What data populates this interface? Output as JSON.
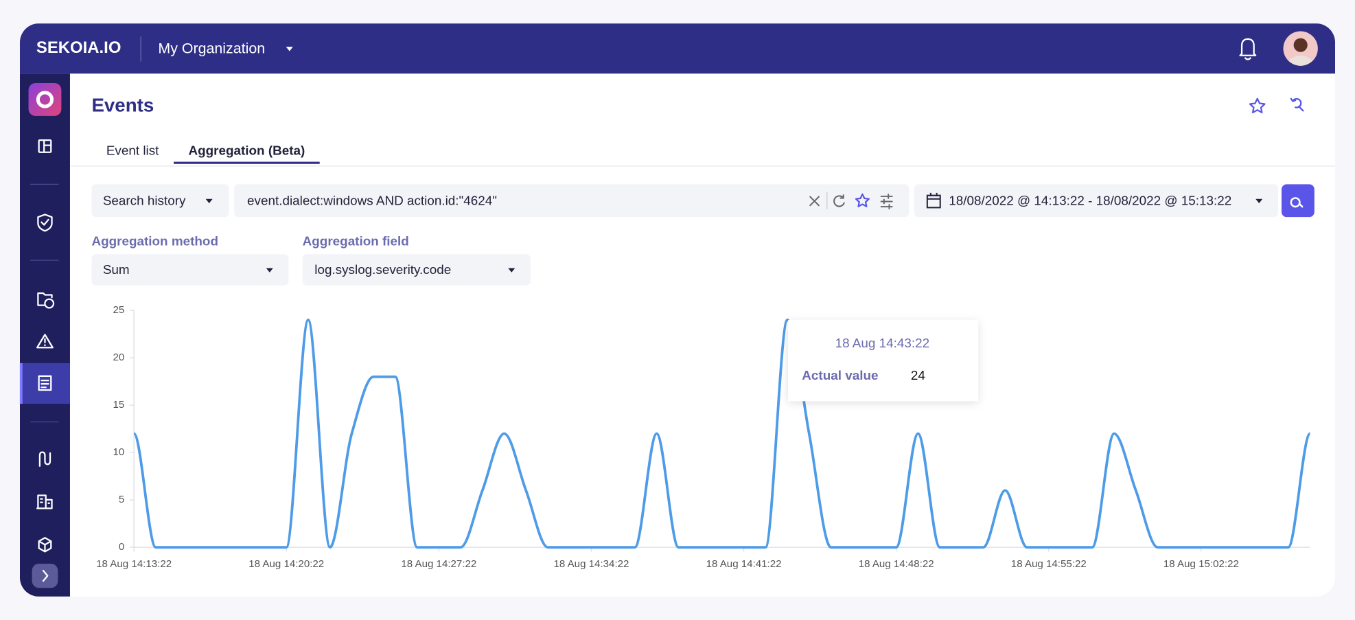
{
  "header": {
    "brand": "SEKOIA.IO",
    "organization": "My Organization"
  },
  "page": {
    "title": "Events",
    "tabs": [
      "Event list",
      "Aggregation (Beta)"
    ],
    "active_tab": 1
  },
  "search": {
    "history": "Search history",
    "query": "event.dialect:windows AND action.id:\"4624\"",
    "date_range": "18/08/2022 @ 14:13:22 - 18/08/2022 @ 15:13:22"
  },
  "aggregation": {
    "method_label": "Aggregation method",
    "method": "Sum",
    "field_label": "Aggregation field",
    "field": "log.syslog.severity.code"
  },
  "chart_data": {
    "type": "line",
    "color": "#4e9be8",
    "categories": [
      "18 Aug 14:13:22",
      null,
      null,
      null,
      null,
      null,
      null,
      "18 Aug 14:20:22",
      null,
      null,
      null,
      null,
      null,
      null,
      "18 Aug 14:27:22",
      null,
      null,
      null,
      null,
      null,
      null,
      "18 Aug 14:34:22",
      null,
      null,
      null,
      null,
      null,
      null,
      "18 Aug 14:41:22",
      null,
      null,
      null,
      null,
      null,
      null,
      "18 Aug 14:48:22",
      null,
      null,
      null,
      null,
      null,
      null,
      "18 Aug 14:55:22",
      null,
      null,
      null,
      null,
      null,
      null,
      "18 Aug 15:02:22",
      null,
      null,
      null,
      null,
      null
    ],
    "values": [
      12,
      0,
      0,
      0,
      0,
      0,
      0,
      0,
      24,
      0,
      12,
      18,
      18,
      0,
      0,
      0,
      6,
      12,
      6,
      0,
      0,
      0,
      0,
      0,
      12,
      0,
      0,
      0,
      0,
      0,
      24,
      12,
      0,
      0,
      0,
      0,
      12,
      0,
      0,
      0,
      6,
      0,
      0,
      0,
      0,
      12,
      6,
      0,
      0,
      0,
      0,
      0,
      0,
      0,
      12
    ],
    "ylim": [
      0,
      25
    ],
    "yticks": [
      0,
      5,
      10,
      15,
      20,
      25
    ],
    "tooltip": {
      "title": "18 Aug 14:43:22",
      "label": "Actual value",
      "value": 24
    }
  }
}
